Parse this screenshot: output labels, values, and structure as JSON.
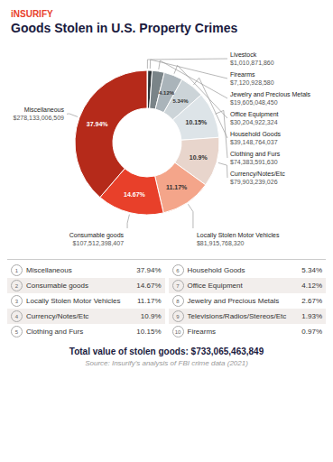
{
  "chart_data": {
    "type": "pie",
    "brand": "iNSURIFY",
    "title": "Goods Stolen in U.S. Property Crimes",
    "categories": [
      "Livestock",
      "Firearms",
      "Jewelry and Precious Metals",
      "Office Equipment",
      "Household Goods",
      "Clothing and Furs",
      "Currency/Notes/Etc",
      "Locally Stolen Motor Vehicles",
      "Consumable goods",
      "Miscellaneous"
    ],
    "values": [
      0.14,
      0.97,
      2.67,
      4.12,
      5.34,
      10.15,
      10.9,
      11.17,
      14.67,
      37.94
    ],
    "colors": [
      "#1a1f21",
      "#2e3538",
      "#7a8488",
      "#aab4ba",
      "#ccd4d8",
      "#dde4e8",
      "#e8d5cc",
      "#f4a58a",
      "#e8402a",
      "#b52a1a"
    ],
    "data_labels": true,
    "value_labels": [
      null,
      null,
      null,
      "4.12%",
      "5.34%",
      "10.15%",
      "10.9%",
      "11.17%",
      "14.67%",
      "37.94%"
    ],
    "amount_labels": [
      "$1,010,871,860",
      "$7,120,928,580",
      "$19,605,048,450",
      "$30,204,922,324",
      "$39,148,764,037",
      "$74,383,591,630",
      "$79,903,239,026",
      "$81,915,768,320",
      "$107,512,398,407",
      "$278,133,006,509"
    ],
    "table": [
      [
        1,
        "Miscellaneous",
        "37.94%"
      ],
      [
        2,
        "Consumable goods",
        "14.67%"
      ],
      [
        3,
        "Locally Stolen Motor Vehicles",
        "11.17%"
      ],
      [
        4,
        "Currency/Notes/Etc",
        "10.9%"
      ],
      [
        5,
        "Clothing and Furs",
        "10.15%"
      ],
      [
        6,
        "Household Goods",
        "5.34%"
      ],
      [
        7,
        "Office Equipment",
        "4.12%"
      ],
      [
        8,
        "Jewelry and Precious Metals",
        "2.67%"
      ],
      [
        9,
        "Televisions/Radios/Stereos/Etc",
        "1.93%"
      ],
      [
        10,
        "Firearms",
        "0.97%"
      ]
    ],
    "total": "Total value of stolen goods: $733,065,463,849",
    "source": "Source: Insurify's analysis of FBI crime data (2021)"
  }
}
